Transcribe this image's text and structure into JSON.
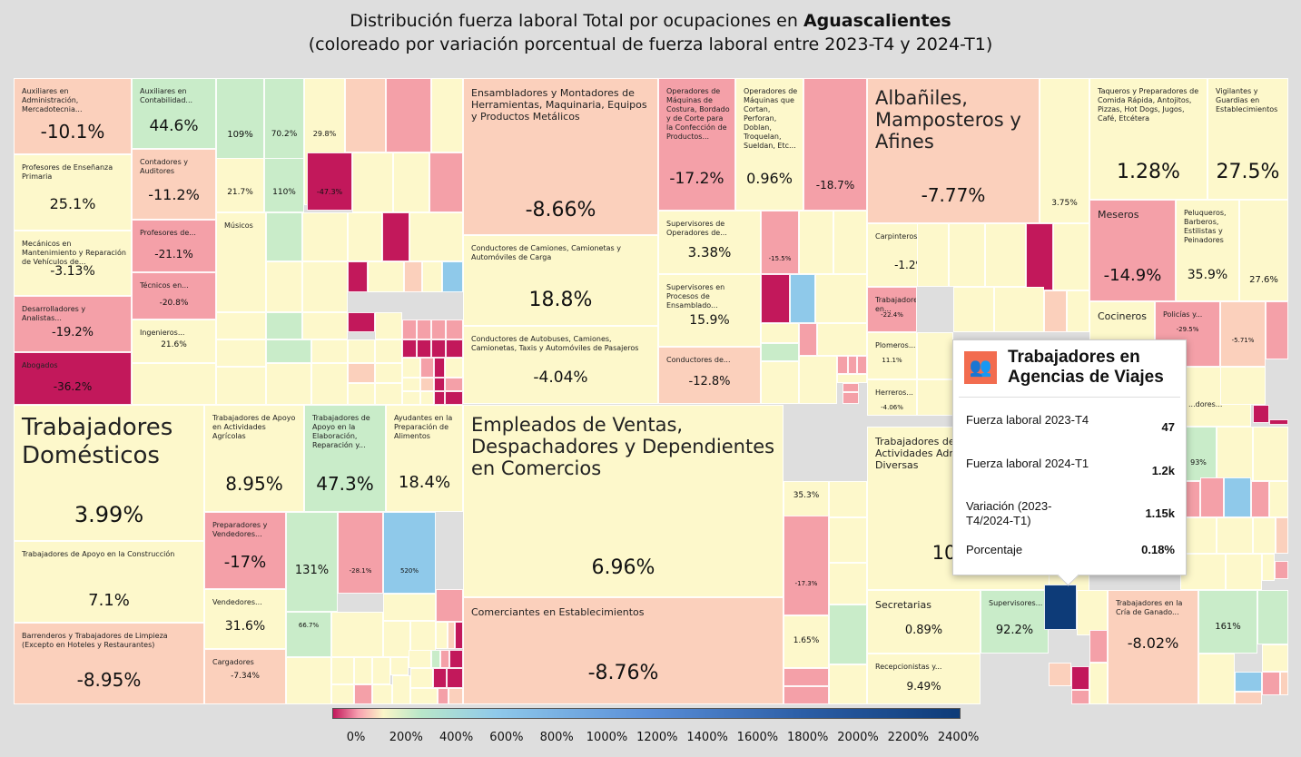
{
  "title": {
    "line1_prefix": "Distribución fuerza laboral Total por ocupaciones en ",
    "line1_bold": "Aguascalientes",
    "line2": "(coloreado por variación porcentual de fuerza laboral entre 2023-T4 y 2024-T1)"
  },
  "colors": {
    "neg_strong": "#c2185b",
    "neg": "#f4a0a8",
    "neg_light": "#fbd0bc",
    "neutral": "#fdf8cb",
    "pos_light": "#c9ecc9",
    "pos": "#8fc9ea",
    "pos_strong": "#0d3b78"
  },
  "chart_data": {
    "type": "treemap",
    "color_metric": "variación porcentual de fuerza laboral entre 2023-T4 y 2024-T1",
    "legend_ticks": [
      "0%",
      "200%",
      "400%",
      "600%",
      "800%",
      "1000%",
      "1200%",
      "1400%",
      "1600%",
      "1800%",
      "2000%",
      "2200%",
      "2400%"
    ],
    "labeled_cells": [
      {
        "label": "Auxiliares en Administración, Mercadotecnia...",
        "value": "-10.1%"
      },
      {
        "label": "Auxiliares en Contabilidad...",
        "value": "44.6%"
      },
      {
        "label": "",
        "value": "109%"
      },
      {
        "label": "",
        "value": "70.2%"
      },
      {
        "label": "",
        "value": "29.8%"
      },
      {
        "label": "Profesores de Enseñanza Primaria",
        "value": "25.1%"
      },
      {
        "label": "Contadores y Auditores",
        "value": "-11.2%"
      },
      {
        "label": "",
        "value": "21.7%"
      },
      {
        "label": "",
        "value": "110%"
      },
      {
        "label": "",
        "value": "-47.3%"
      },
      {
        "label": "Mecánicos en Mantenimiento y Reparación de Vehículos de...",
        "value": "-3.13%"
      },
      {
        "label": "Profesores de...",
        "value": "-21.1%"
      },
      {
        "label": "Músicos",
        "value": ""
      },
      {
        "label": "Técnicos en...",
        "value": "-20.8%"
      },
      {
        "label": "Desarrolladores y Analistas...",
        "value": "-19.2%"
      },
      {
        "label": "Ingenieros...",
        "value": "21.6%"
      },
      {
        "label": "Abogados",
        "value": "-36.2%"
      },
      {
        "label": "Ensambladores y Montadores de Herramientas, Maquinaria, Equipos y Productos Metálicos",
        "value": "-8.66%"
      },
      {
        "label": "Operadores de Máquinas de Costura, Bordado y de Corte para la Confección de Productos...",
        "value": "-17.2%"
      },
      {
        "label": "Operadores de Máquinas que Cortan, Perforan, Doblan, Troquelan, Sueldan, Etc...",
        "value": "0.96%"
      },
      {
        "label": "",
        "value": "-18.7%"
      },
      {
        "label": "Supervisores de Operadores de...",
        "value": "3.38%"
      },
      {
        "label": "",
        "value": "-15.5%"
      },
      {
        "label": "Conductores de Camiones, Camionetas y Automóviles de Carga",
        "value": "18.8%"
      },
      {
        "label": "Supervisores en Procesos de Ensamblado...",
        "value": "15.9%"
      },
      {
        "label": "Conductores de Autobuses, Camiones, Camionetas, Taxis y Automóviles de Pasajeros",
        "value": "-4.04%"
      },
      {
        "label": "Conductores de...",
        "value": "-12.8%"
      },
      {
        "label": "Albañiles, Mamposteros y Afines",
        "value": "-7.77%"
      },
      {
        "label": "",
        "value": "3.75%"
      },
      {
        "label": "Carpinteros...",
        "value": "-1.2%"
      },
      {
        "label": "Trabajadores en...",
        "value": "-22.4%"
      },
      {
        "label": "Plomeros...",
        "value": "11.1%"
      },
      {
        "label": "Herreros...",
        "value": "-4.06%"
      },
      {
        "label": "Taqueros y Preparadores de Comida Rápida, Antojitos, Pizzas, Hot Dogs, Jugos, Café, Etcétera",
        "value": "1.28%"
      },
      {
        "label": "Vigilantes y Guardias en Establecimientos",
        "value": "27.5%"
      },
      {
        "label": "Meseros",
        "value": "-14.9%"
      },
      {
        "label": "Peluqueros, Barberos, Estilistas y Peinadores",
        "value": "35.9%"
      },
      {
        "label": "",
        "value": "27.6%"
      },
      {
        "label": "Cocineros",
        "value": ""
      },
      {
        "label": "Policías y...",
        "value": "-29.5%"
      },
      {
        "label": "",
        "value": "-5.71%"
      },
      {
        "label": "Trabajadores Domésticos",
        "value": "3.99%"
      },
      {
        "label": "Trabajadores de Apoyo en la Construcción",
        "value": "7.1%"
      },
      {
        "label": "Barrenderos y Trabajadores de Limpieza (Excepto en Hoteles y Restaurantes)",
        "value": "-8.95%"
      },
      {
        "label": "Trabajadores de Apoyo en Actividades Agrícolas",
        "value": "8.95%"
      },
      {
        "label": "Trabajadores de Apoyo en la Elaboración, Reparación y...",
        "value": "47.3%"
      },
      {
        "label": "Ayudantes en la Preparación de Alimentos",
        "value": "18.4%"
      },
      {
        "label": "Preparadores y Vendedores...",
        "value": "-17%"
      },
      {
        "label": "",
        "value": "131%"
      },
      {
        "label": "",
        "value": "-28.1%"
      },
      {
        "label": "",
        "value": "520%"
      },
      {
        "label": "Vendedores...",
        "value": "31.6%"
      },
      {
        "label": "",
        "value": "66.7%"
      },
      {
        "label": "Cargadores",
        "value": "-7.34%"
      },
      {
        "label": "Empleados de Ventas, Despachadores y Dependientes en Comercios",
        "value": "6.96%"
      },
      {
        "label": "",
        "value": "35.3%"
      },
      {
        "label": "",
        "value": "-17.3%"
      },
      {
        "label": "Comerciantes en Establecimientos",
        "value": "-8.76%"
      },
      {
        "label": "",
        "value": "1.65%"
      },
      {
        "label": "Trabajadores de Apoyo en Actividades Administrativas Diversas",
        "value": "10.6%"
      },
      {
        "label": "Secretarias",
        "value": "0.89%"
      },
      {
        "label": "Supervisores...",
        "value": "92.2%"
      },
      {
        "label": "Recepcionistas y...",
        "value": "9.49%"
      },
      {
        "label": "",
        "value": "93%"
      },
      {
        "label": "Trabajadores en la Cría de Ganado...",
        "value": "-8.02%"
      },
      {
        "label": "",
        "value": "161%"
      }
    ],
    "partial_labels": [
      "...dores..."
    ]
  },
  "tooltip": {
    "title": "Trabajadores en Agencias de Viajes",
    "icon": "people-icon",
    "rows": [
      {
        "key": "Fuerza laboral 2023-T4",
        "value": "47"
      },
      {
        "key": "Fuerza laboral 2024-T1",
        "value": "1.2k"
      },
      {
        "key": "Variación (2023-T4/2024-T1)",
        "value": "1.15k"
      },
      {
        "key": "Porcentaje",
        "value": "0.18%"
      }
    ]
  }
}
